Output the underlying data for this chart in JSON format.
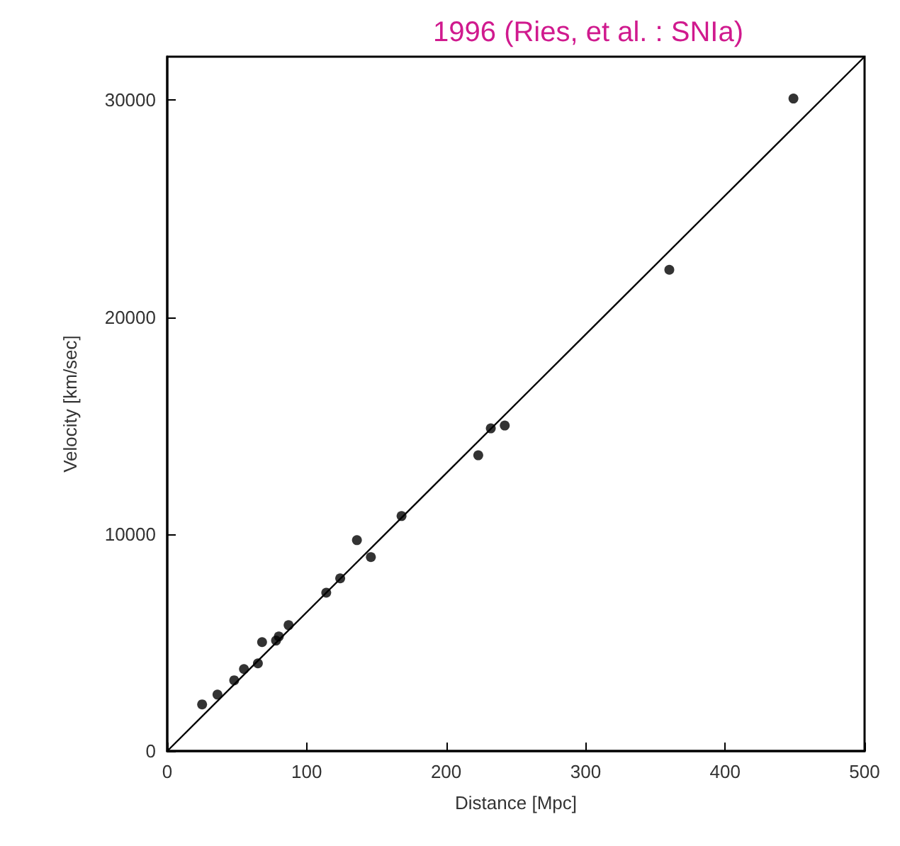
{
  "chart_data": {
    "type": "scatter",
    "title": "1996 (Ries, et al. : SNIa)",
    "xlabel": "Distance [Mpc]",
    "ylabel": "Velocity [km/sec]",
    "x": [
      25,
      36,
      48,
      55,
      65,
      68,
      78,
      80,
      87,
      114,
      124,
      136,
      146,
      168,
      223,
      232,
      242,
      360,
      449
    ],
    "series": [
      {
        "color": "#000000",
        "values": [
          2150,
          2600,
          3260,
          3780,
          4040,
          5020,
          5090,
          5280,
          5800,
          7300,
          7960,
          9720,
          8940,
          10830,
          13630,
          14870,
          15000,
          22180,
          30070
        ]
      },
      {
        "type": "line",
        "color": "#000000",
        "marker": "none",
        "x": [
          0,
          500
        ],
        "values": [
          0,
          32000
        ]
      }
    ],
    "marker": "circle",
    "xlim": [
      0,
      500
    ],
    "xticks": [
      0,
      100,
      200,
      300,
      400,
      500
    ],
    "ylim": [
      0,
      32000
    ],
    "yticks": [
      0,
      10000,
      20000,
      30000
    ],
    "grid": false
  }
}
